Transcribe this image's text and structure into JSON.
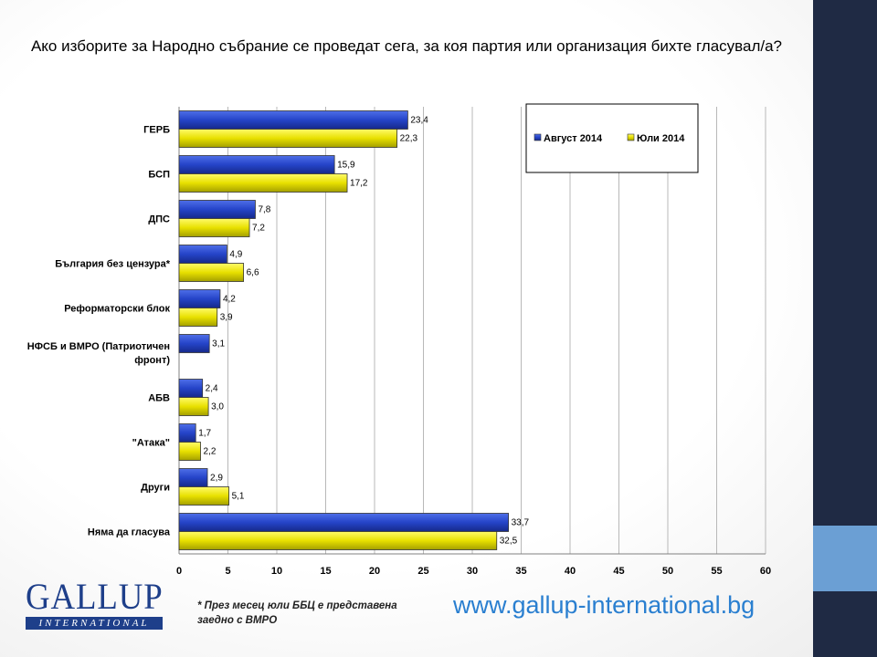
{
  "title": "Ако изборите за Народно събрание се проведат сега, за коя партия или организация бихте гласувал/а?",
  "footnote": "* През месец юли ББЦ е представена заедно с ВМРО",
  "website": "www.gallup-international.bg",
  "logo": {
    "name": "GALLUP",
    "sub": "INTERNATIONAL"
  },
  "colors": {
    "august": "#2544c8",
    "july": "#e8e000",
    "panel": "#1f2a44",
    "accent": "#6b9fd4",
    "link": "#2a7fd0"
  },
  "chart_data": {
    "type": "bar",
    "orientation": "horizontal",
    "categories": [
      "ГЕРБ",
      "БСП",
      "ДПС",
      "България без цензура*",
      "Реформаторски блок",
      "НФСБ и ВМРО (Патриотичен фронт)",
      "АБВ",
      "\"Атака\"",
      "Други",
      "Няма да гласува"
    ],
    "category_lines": [
      [
        "ГЕРБ"
      ],
      [
        "БСП"
      ],
      [
        "ДПС"
      ],
      [
        "България без цензура*"
      ],
      [
        "Реформаторски блок"
      ],
      [
        "НФСБ и ВМРО (Патриотичен",
        "фронт)"
      ],
      [
        "АБВ"
      ],
      [
        "\"Атака\""
      ],
      [
        "Други"
      ],
      [
        "Няма да гласува"
      ]
    ],
    "series": [
      {
        "name": "Август 2014",
        "values": [
          23.4,
          15.9,
          7.8,
          4.9,
          4.2,
          3.1,
          2.4,
          1.7,
          2.9,
          33.7
        ],
        "labels": [
          "23,4",
          "15,9",
          "7,8",
          "4,9",
          "4,2",
          "3,1",
          "2,4",
          "1,7",
          "2,9",
          "33,7"
        ]
      },
      {
        "name": "Юли 2014",
        "values": [
          22.3,
          17.2,
          7.2,
          6.6,
          3.9,
          null,
          3.0,
          2.2,
          5.1,
          32.5
        ],
        "labels": [
          "22,3",
          "17,2",
          "7,2",
          "6,6",
          "3,9",
          null,
          "3,0",
          "2,2",
          "5,1",
          "32,5"
        ]
      }
    ],
    "xlim": [
      0,
      60
    ],
    "xticks": [
      0,
      5,
      10,
      15,
      20,
      25,
      30,
      35,
      40,
      45,
      50,
      55,
      60
    ],
    "grid": true,
    "legend": "top-right"
  }
}
